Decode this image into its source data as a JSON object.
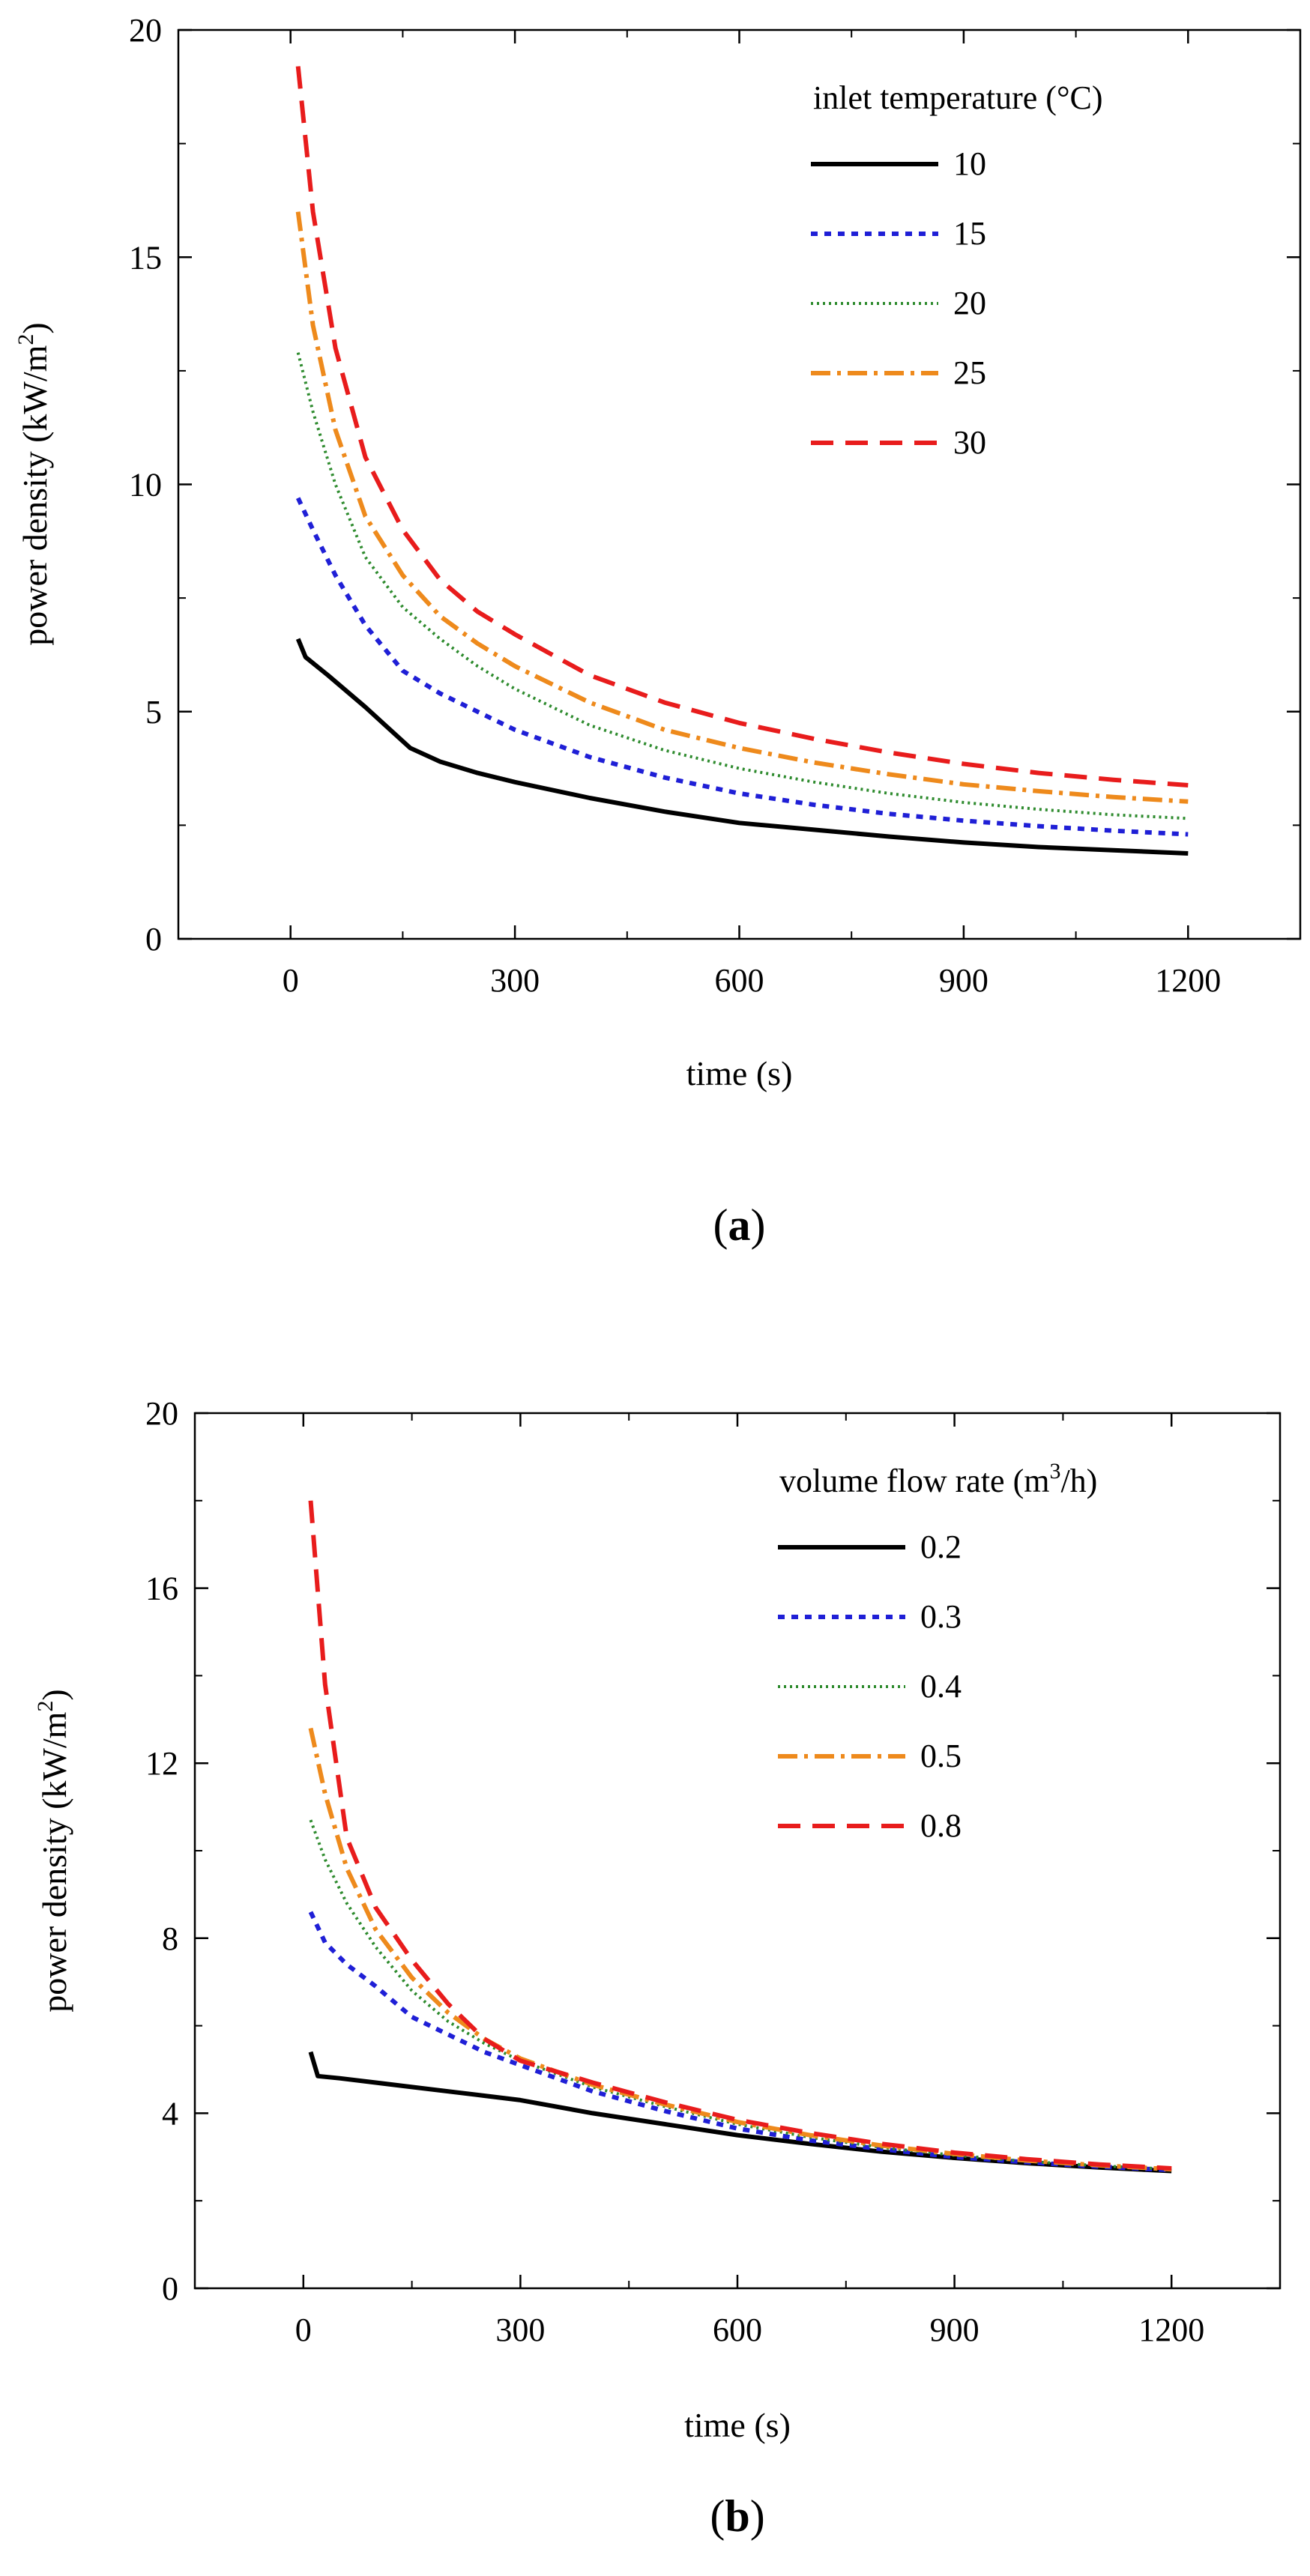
{
  "panels": [
    {
      "label": "a",
      "chart_data": {
        "type": "line",
        "xlabel": "time (s)",
        "ylabel": "power density (kW/m2)",
        "ylabel_base": "power density (kW/m",
        "ylabel_sup": "2",
        "ylabel_tail": ")",
        "xlim": [
          -150,
          1350
        ],
        "ylim": [
          0,
          20
        ],
        "xticks": [
          0,
          300,
          600,
          900,
          1200
        ],
        "yticks": [
          0,
          5,
          10,
          15,
          20
        ],
        "xtick_labels": [
          "0",
          "300",
          "600",
          "900",
          "1200"
        ],
        "ytick_labels": [
          "0",
          "5",
          "10",
          "15",
          "20"
        ],
        "grid": false,
        "legend_placement": "top-right",
        "legend_title": "inlet temperature (°C)",
        "series": [
          {
            "name": "10",
            "color": "#000000",
            "style": "solid",
            "x": [
              10,
              20,
              50,
              100,
              160,
              200,
              250,
              300,
              400,
              500,
              600,
              700,
              800,
              900,
              1000,
              1100,
              1200
            ],
            "y": [
              6.6,
              6.2,
              5.8,
              5.1,
              4.2,
              3.9,
              3.65,
              3.45,
              3.1,
              2.8,
              2.55,
              2.4,
              2.25,
              2.12,
              2.02,
              1.95,
              1.88
            ]
          },
          {
            "name": "15",
            "color": "#1f1fd6",
            "style": "dot",
            "x": [
              10,
              30,
              60,
              100,
              150,
              200,
              250,
              300,
              400,
              500,
              600,
              700,
              800,
              900,
              1000,
              1100,
              1200
            ],
            "y": [
              9.7,
              9.0,
              8.0,
              6.9,
              5.9,
              5.4,
              5.0,
              4.6,
              4.0,
              3.55,
              3.2,
              2.95,
              2.75,
              2.6,
              2.48,
              2.38,
              2.3
            ]
          },
          {
            "name": "20",
            "color": "#2e8b2e",
            "style": "finedot",
            "x": [
              10,
              30,
              60,
              100,
              150,
              200,
              250,
              300,
              400,
              500,
              600,
              700,
              800,
              900,
              1000,
              1100,
              1200
            ],
            "y": [
              12.9,
              11.6,
              10.0,
              8.4,
              7.3,
              6.6,
              6.0,
              5.5,
              4.7,
              4.15,
              3.75,
              3.45,
              3.2,
              3.0,
              2.85,
              2.73,
              2.65
            ]
          },
          {
            "name": "25",
            "color": "#ee8a1c",
            "style": "dashdot",
            "x": [
              10,
              30,
              60,
              100,
              150,
              200,
              250,
              300,
              400,
              500,
              600,
              700,
              800,
              900,
              1000,
              1100,
              1200
            ],
            "y": [
              16.0,
              13.5,
              11.2,
              9.3,
              8.0,
              7.1,
              6.5,
              6.0,
              5.2,
              4.6,
              4.2,
              3.88,
              3.62,
              3.4,
              3.25,
              3.12,
              3.02
            ]
          },
          {
            "name": "30",
            "color": "#e81c1c",
            "style": "dash",
            "x": [
              10,
              30,
              60,
              100,
              150,
              200,
              250,
              300,
              400,
              500,
              600,
              700,
              800,
              900,
              1000,
              1100,
              1200
            ],
            "y": [
              19.2,
              16.0,
              13.0,
              10.6,
              9.0,
              7.9,
              7.2,
              6.7,
              5.8,
              5.2,
              4.75,
              4.4,
              4.1,
              3.85,
              3.65,
              3.5,
              3.38
            ]
          }
        ]
      }
    },
    {
      "label": "b",
      "chart_data": {
        "type": "line",
        "xlabel": "time (s)",
        "ylabel": "power density (kW/m2)",
        "ylabel_base": "power density (kW/m",
        "ylabel_sup": "2",
        "ylabel_tail": ")",
        "xlim": [
          -150,
          1350
        ],
        "ylim": [
          0,
          20
        ],
        "xticks": [
          0,
          300,
          600,
          900,
          1200
        ],
        "yticks": [
          0,
          4,
          8,
          12,
          16,
          20
        ],
        "xtick_labels": [
          "0",
          "300",
          "600",
          "900",
          "1200"
        ],
        "ytick_labels": [
          "0",
          "4",
          "8",
          "12",
          "16",
          "20"
        ],
        "grid": false,
        "legend_placement": "top-right",
        "legend_title_base": "volume flow rate (m",
        "legend_title_sup": "3",
        "legend_title_tail": "/h)",
        "series": [
          {
            "name": "0.2",
            "color": "#000000",
            "style": "solid",
            "x": [
              10,
              20,
              50,
              100,
              150,
              200,
              250,
              300,
              400,
              500,
              600,
              700,
              800,
              900,
              1000,
              1100,
              1200
            ],
            "y": [
              5.4,
              4.85,
              4.8,
              4.7,
              4.6,
              4.5,
              4.4,
              4.3,
              4.0,
              3.75,
              3.5,
              3.3,
              3.12,
              2.98,
              2.86,
              2.76,
              2.68
            ]
          },
          {
            "name": "0.3",
            "color": "#1f1fd6",
            "style": "dot",
            "x": [
              10,
              30,
              60,
              100,
              150,
              200,
              250,
              300,
              400,
              500,
              600,
              700,
              800,
              900,
              1000,
              1100,
              1200
            ],
            "y": [
              8.6,
              7.9,
              7.4,
              6.9,
              6.2,
              5.8,
              5.4,
              5.1,
              4.5,
              4.05,
              3.65,
              3.38,
              3.18,
              3.0,
              2.88,
              2.78,
              2.7
            ]
          },
          {
            "name": "0.4",
            "color": "#2e8b2e",
            "style": "finedot",
            "x": [
              10,
              30,
              60,
              100,
              150,
              200,
              250,
              300,
              400,
              500,
              600,
              700,
              800,
              900,
              1000,
              1100,
              1200
            ],
            "y": [
              10.7,
              9.8,
              8.8,
              7.8,
              6.8,
              6.1,
              5.6,
              5.2,
              4.6,
              4.15,
              3.75,
              3.45,
              3.22,
              3.04,
              2.9,
              2.8,
              2.72
            ]
          },
          {
            "name": "0.5",
            "color": "#ee8a1c",
            "style": "dashdot",
            "x": [
              10,
              30,
              60,
              100,
              150,
              200,
              250,
              300,
              400,
              500,
              600,
              700,
              800,
              900,
              1000,
              1100,
              1200
            ],
            "y": [
              12.8,
              11.3,
              9.6,
              8.2,
              7.1,
              6.3,
              5.7,
              5.25,
              4.65,
              4.2,
              3.8,
              3.5,
              3.26,
              3.07,
              2.92,
              2.81,
              2.72
            ]
          },
          {
            "name": "0.8",
            "color": "#e81c1c",
            "style": "dash",
            "x": [
              10,
              30,
              60,
              100,
              150,
              200,
              250,
              300,
              400,
              500,
              600,
              700,
              800,
              900,
              1000,
              1100,
              1200
            ],
            "y": [
              18.0,
              13.8,
              10.3,
              8.7,
              7.5,
              6.5,
              5.7,
              5.2,
              4.7,
              4.25,
              3.85,
              3.55,
              3.3,
              3.1,
              2.95,
              2.83,
              2.74
            ]
          }
        ]
      }
    }
  ]
}
